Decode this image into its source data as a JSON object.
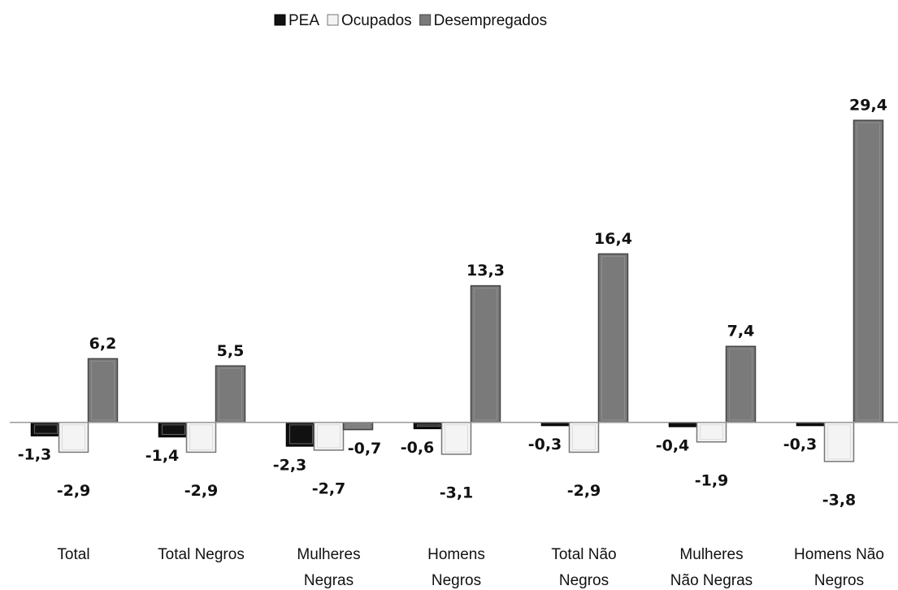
{
  "chart_data": {
    "type": "bar",
    "categories": [
      [
        "Total"
      ],
      [
        "Total Negros"
      ],
      [
        "Mulheres",
        "Negras"
      ],
      [
        "Homens",
        "Negros"
      ],
      [
        "Total Não",
        "Negros"
      ],
      [
        "Mulheres",
        "Não Negras"
      ],
      [
        "Homens Não",
        "Negros"
      ]
    ],
    "series": [
      {
        "name": "PEA",
        "color": "#111111",
        "values": [
          -1.3,
          -1.4,
          -2.3,
          -0.6,
          -0.3,
          -0.4,
          -0.3
        ],
        "value_labels": [
          "-1,3",
          "-1,4",
          "-2,3",
          "-0,6",
          "-0,3",
          "-0,4",
          "-0,3"
        ]
      },
      {
        "name": "Ocupados",
        "color": "#f4f4f4",
        "values": [
          -2.9,
          -2.9,
          -2.7,
          -3.1,
          -2.9,
          -1.9,
          -3.8
        ],
        "value_labels": [
          "-2,9",
          "-2,9",
          "-2,7",
          "-3,1",
          "-2,9",
          "-1,9",
          "-3,8"
        ]
      },
      {
        "name": "Desempregados",
        "color": "#7a7a7a",
        "values": [
          6.2,
          5.5,
          -0.7,
          13.3,
          16.4,
          7.4,
          29.4
        ],
        "value_labels": [
          "6,2",
          "5,5",
          "-0,7",
          "13,3",
          "16,4",
          "7,4",
          "29,4"
        ]
      }
    ],
    "ylim": [
      -5,
      30
    ],
    "legend": "top"
  }
}
